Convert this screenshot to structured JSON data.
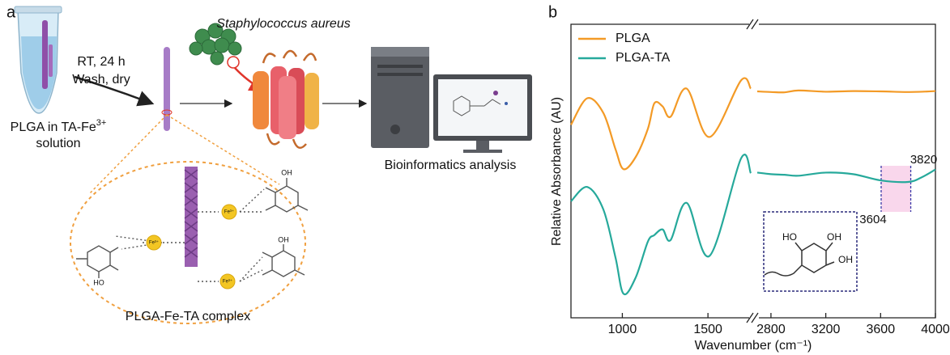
{
  "panel_a": {
    "label": "a",
    "step1": [
      "RT, 24 h",
      "Wash, dry"
    ],
    "tube_label": {
      "main": "PLGA in TA-Fe",
      "sup": "3+",
      "line2": "solution"
    },
    "organism": "Staphylococcus aureus",
    "analysis": "Bioinformatics analysis",
    "complex": "PLGA-Fe-TA complex",
    "fe_labels": [
      "Fe³⁺",
      "Fe³⁺",
      "Fe³⁺"
    ],
    "oh_labels": [
      "OH",
      "HO",
      "OH"
    ]
  },
  "chart_data": [
    {
      "type": "line",
      "panel_label": "b",
      "y_label": "Relative Absorbance (AU)",
      "x_label": "Wavenumber (cm⁻¹)",
      "legend": "upper left",
      "x": [
        700,
        795,
        889,
        960,
        1007,
        1078,
        1149,
        1187,
        1235,
        1282,
        1376,
        1509,
        1693,
        1750
      ],
      "xlim": [
        700,
        1750
      ],
      "xticks": [
        1000,
        1500
      ],
      "ylim": [
        0.6,
        10
      ],
      "series": [
        {
          "name": "PLGA",
          "color": "#f39a26",
          "values": [
            6.78,
            7.63,
            7.16,
            6.0,
            5.36,
            5.75,
            6.65,
            7.47,
            7.37,
            7.04,
            7.94,
            6.39,
            8.2,
            7.94
          ]
        },
        {
          "name": "PLGA-TA",
          "color": "#26a99b",
          "values": [
            4.33,
            4.79,
            4.07,
            2.53,
            1.37,
            1.89,
            3.04,
            3.25,
            3.43,
            3.09,
            4.28,
            2.58,
            5.7,
            5.23
          ]
        }
      ]
    },
    {
      "type": "line",
      "x": [
        2700,
        2800,
        2900,
        3000,
        3200,
        3400,
        3600,
        3800,
        3900,
        4000
      ],
      "xlim": [
        2700,
        4000
      ],
      "xticks": [
        2800,
        3200,
        3600,
        4000
      ],
      "ylim": [
        0.6,
        10
      ],
      "highlight": [
        3604,
        3820
      ],
      "inset_labels": [
        "HO",
        "OH",
        "OH"
      ],
      "series": [
        {
          "name": "PLGA",
          "color": "#f39a26",
          "values": [
            7.85,
            7.83,
            7.82,
            7.88,
            7.84,
            7.86,
            7.85,
            7.83,
            7.84,
            7.86
          ]
        },
        {
          "name": "PLGA-TA",
          "color": "#26a99b",
          "values": [
            5.25,
            5.2,
            5.18,
            5.15,
            5.25,
            5.2,
            5.0,
            4.95,
            5.1,
            5.35
          ]
        }
      ]
    }
  ]
}
